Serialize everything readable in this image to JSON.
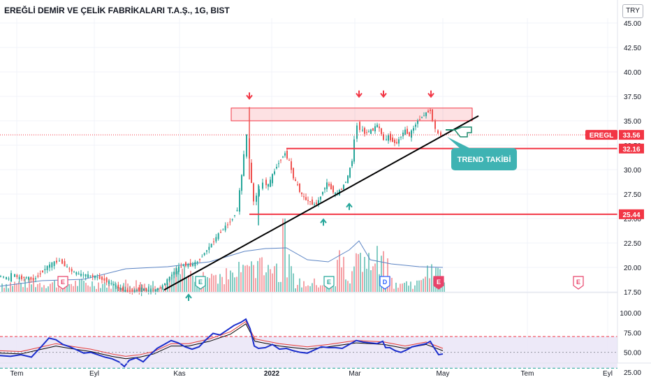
{
  "header": {
    "title": "EREĞLİ DEMİR VE ÇELİK FABRİKALARI T.A.Ş., 1G, BIST",
    "currency": "TRY"
  },
  "chart_data": [
    {
      "type": "candlestick",
      "title": "EREĞLİ DEMİR VE ÇELİK FABRİKALARI T.A.Ş., 1G, BIST",
      "ticker": "EREGL",
      "last_price": "33.56",
      "ylim": [
        17.5,
        46
      ],
      "y_ticks": [
        "45.00",
        "42.50",
        "40.00",
        "37.50",
        "35.00",
        "32.50",
        "30.00",
        "27.50",
        "25.00",
        "22.50",
        "20.00",
        "17.50"
      ],
      "x_ticks": [
        "Tem",
        "Eyl",
        "Kas",
        "2022",
        "Mar",
        "May",
        "Tem",
        "Eyl"
      ],
      "price_path": [
        [
          0,
          19.1
        ],
        [
          8,
          19.0
        ],
        [
          15,
          18.8
        ],
        [
          20,
          19.3
        ],
        [
          30,
          18.9
        ],
        [
          40,
          19.0
        ],
        [
          50,
          18.7
        ],
        [
          60,
          19.4
        ],
        [
          70,
          20.1
        ],
        [
          80,
          20.5
        ],
        [
          88,
          20.7
        ],
        [
          95,
          20.2
        ],
        [
          105,
          19.6
        ],
        [
          115,
          19.3
        ],
        [
          125,
          19.2
        ],
        [
          135,
          19.1
        ],
        [
          145,
          18.9
        ],
        [
          155,
          18.6
        ],
        [
          165,
          18.2
        ],
        [
          175,
          17.8
        ],
        [
          185,
          17.5
        ],
        [
          195,
          17.6
        ],
        [
          205,
          17.8
        ],
        [
          215,
          17.6
        ],
        [
          225,
          17.7
        ],
        [
          235,
          18.1
        ],
        [
          245,
          19.0
        ],
        [
          255,
          19.8
        ],
        [
          265,
          20.3
        ],
        [
          275,
          20.2
        ],
        [
          285,
          20.6
        ],
        [
          295,
          21.5
        ],
        [
          305,
          22.4
        ],
        [
          315,
          23.4
        ],
        [
          325,
          24.2
        ],
        [
          335,
          25.0
        ],
        [
          342,
          26.0
        ],
        [
          348,
          29.5
        ],
        [
          352,
          31.5
        ],
        [
          356,
          33.5
        ],
        [
          359,
          31.0
        ],
        [
          362,
          28.5
        ],
        [
          366,
          26.8
        ],
        [
          370,
          27.3
        ],
        [
          375,
          28.0
        ],
        [
          380,
          28.7
        ],
        [
          386,
          28.4
        ],
        [
          392,
          29.4
        ],
        [
          398,
          30.4
        ],
        [
          404,
          31.1
        ],
        [
          410,
          31.7
        ],
        [
          416,
          30.8
        ],
        [
          422,
          29.2
        ],
        [
          428,
          28.3
        ],
        [
          434,
          27.4
        ],
        [
          440,
          26.9
        ],
        [
          446,
          26.7
        ],
        [
          452,
          26.4
        ],
        [
          458,
          26.8
        ],
        [
          464,
          27.8
        ],
        [
          470,
          28.6
        ],
        [
          476,
          28.1
        ],
        [
          482,
          27.5
        ],
        [
          488,
          27.8
        ],
        [
          494,
          28.4
        ],
        [
          500,
          29.3
        ],
        [
          506,
          31.0
        ],
        [
          510,
          33.0
        ],
        [
          514,
          34.6
        ],
        [
          518,
          34.2
        ],
        [
          524,
          33.8
        ],
        [
          530,
          33.9
        ],
        [
          536,
          34.1
        ],
        [
          542,
          34.6
        ],
        [
          548,
          33.7
        ],
        [
          552,
          33.0
        ],
        [
          558,
          33.4
        ],
        [
          564,
          32.9
        ],
        [
          570,
          32.7
        ],
        [
          576,
          33.5
        ],
        [
          582,
          34.0
        ],
        [
          588,
          33.5
        ],
        [
          594,
          34.3
        ],
        [
          600,
          35.0
        ],
        [
          606,
          35.4
        ],
        [
          612,
          35.8
        ],
        [
          618,
          36.1
        ],
        [
          622,
          35.0
        ],
        [
          626,
          34.2
        ],
        [
          630,
          33.6
        ],
        [
          634,
          33.56
        ]
      ],
      "price_tag": {
        "label": "EREGL",
        "value": "33.56"
      },
      "resistance_zone": {
        "y_top": 36.3,
        "y_bottom": 35.0
      },
      "support_levels": [
        {
          "value": 32.16,
          "label": "32.16"
        },
        {
          "value": 25.44,
          "label": "25.44"
        }
      ],
      "trendline": {
        "from": [
          18.5
        ],
        "to": [
          35.5
        ]
      },
      "annotation": "TREND TAKİBİ",
      "event_badges": [
        {
          "letter": "E",
          "color": "#e8436a"
        },
        {
          "letter": "E",
          "color": "#26a69a"
        },
        {
          "letter": "E",
          "color": "#26a69a"
        },
        {
          "letter": "D",
          "color": "#2962ff"
        },
        {
          "letter": "E",
          "color": "#e8436a"
        },
        {
          "letter": "E",
          "color": "#e8436a"
        }
      ],
      "volume": {
        "color_up": "#83ccc3",
        "color_down": "#f5a3a8",
        "ma_color": "#5b84c4"
      }
    },
    {
      "type": "line",
      "indicator": "RSI",
      "ylim": [
        25,
        100
      ],
      "y_ticks": [
        "100.00",
        "75.00",
        "50.00",
        "25.00"
      ],
      "upper_band": 70,
      "lower_band": 30,
      "rsi": [
        [
          0,
          46
        ],
        [
          15,
          45
        ],
        [
          30,
          47
        ],
        [
          45,
          44
        ],
        [
          60,
          58
        ],
        [
          70,
          68
        ],
        [
          80,
          66
        ],
        [
          90,
          60
        ],
        [
          100,
          57
        ],
        [
          110,
          53
        ],
        [
          120,
          49
        ],
        [
          130,
          50
        ],
        [
          140,
          47
        ],
        [
          150,
          44
        ],
        [
          160,
          42
        ],
        [
          170,
          38
        ],
        [
          178,
          32
        ],
        [
          185,
          40
        ],
        [
          195,
          43
        ],
        [
          205,
          38
        ],
        [
          215,
          47
        ],
        [
          225,
          55
        ],
        [
          235,
          60
        ],
        [
          245,
          65
        ],
        [
          255,
          62
        ],
        [
          265,
          57
        ],
        [
          275,
          54
        ],
        [
          285,
          57
        ],
        [
          295,
          66
        ],
        [
          305,
          74
        ],
        [
          315,
          72
        ],
        [
          325,
          78
        ],
        [
          335,
          84
        ],
        [
          345,
          88
        ],
        [
          352,
          92
        ],
        [
          358,
          80
        ],
        [
          364,
          58
        ],
        [
          370,
          55
        ],
        [
          380,
          56
        ],
        [
          390,
          60
        ],
        [
          400,
          54
        ],
        [
          410,
          55
        ],
        [
          420,
          52
        ],
        [
          430,
          50
        ],
        [
          440,
          49
        ],
        [
          450,
          53
        ],
        [
          460,
          57
        ],
        [
          470,
          56
        ],
        [
          480,
          56
        ],
        [
          490,
          55
        ],
        [
          500,
          60
        ],
        [
          510,
          65
        ],
        [
          520,
          63
        ],
        [
          530,
          62
        ],
        [
          540,
          61
        ],
        [
          548,
          64
        ],
        [
          552,
          56
        ],
        [
          558,
          56
        ],
        [
          566,
          52
        ],
        [
          574,
          50
        ],
        [
          582,
          53
        ],
        [
          590,
          57
        ],
        [
          600,
          59
        ],
        [
          610,
          61
        ],
        [
          616,
          64
        ],
        [
          622,
          55
        ],
        [
          628,
          47
        ],
        [
          634,
          48
        ]
      ],
      "signal": [
        [
          0,
          49
        ],
        [
          30,
          48
        ],
        [
          60,
          54
        ],
        [
          80,
          58
        ],
        [
          100,
          55
        ],
        [
          130,
          51
        ],
        [
          160,
          45
        ],
        [
          180,
          42
        ],
        [
          200,
          44
        ],
        [
          220,
          48
        ],
        [
          245,
          58
        ],
        [
          270,
          58
        ],
        [
          300,
          64
        ],
        [
          330,
          73
        ],
        [
          352,
          86
        ],
        [
          365,
          64
        ],
        [
          400,
          58
        ],
        [
          440,
          54
        ],
        [
          470,
          57
        ],
        [
          510,
          62
        ],
        [
          550,
          60
        ],
        [
          580,
          55
        ],
        [
          610,
          60
        ],
        [
          634,
          52
        ]
      ],
      "colors": {
        "rsi": "#1b2ecc",
        "signal": "#e53935",
        "band": "#e8e4f6"
      }
    }
  ]
}
